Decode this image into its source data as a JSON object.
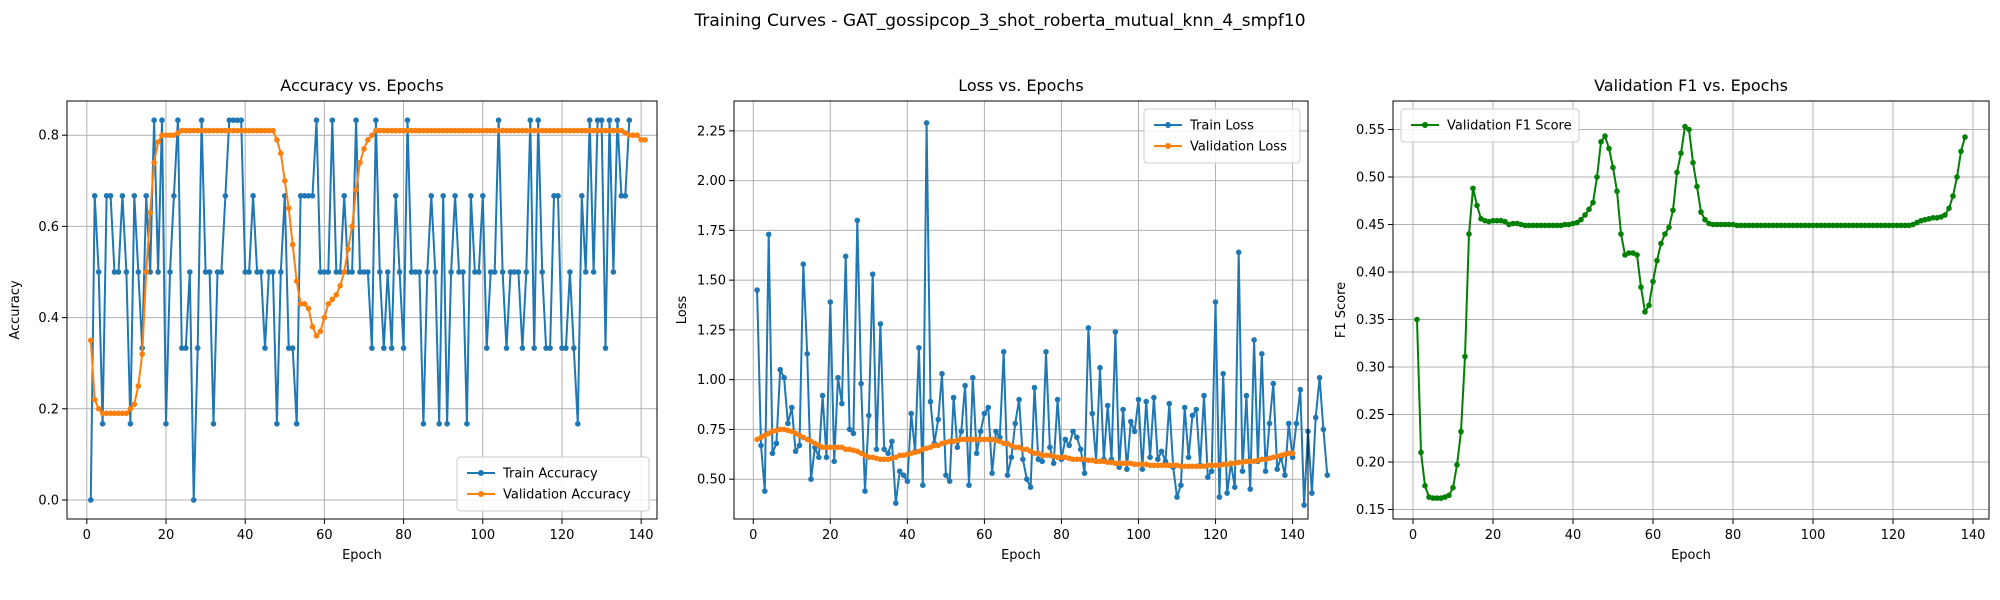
{
  "figure": {
    "suptitle": "Training Curves - GAT_gossipcop_3_shot_roberta_mutual_knn_4_smpf10"
  },
  "colors": {
    "train": "#1f77b4",
    "validation": "#ff7f0e",
    "f1": "#008000",
    "grid": "#b0b0b0"
  },
  "chart_data": [
    {
      "type": "line",
      "title": "Accuracy vs. Epochs",
      "xlabel": "Epoch",
      "ylabel": "Accuracy",
      "xlim": [
        -5,
        144
      ],
      "ylim": [
        -0.0417,
        0.875
      ],
      "xticks": [
        0,
        20,
        40,
        60,
        80,
        100,
        120,
        140
      ],
      "yticks": [
        0.0,
        0.2,
        0.4,
        0.6,
        0.8
      ],
      "ytick_labels": [
        "0.0",
        "0.2",
        "0.4",
        "0.6",
        "0.8"
      ],
      "grid": true,
      "legend": "lower-right",
      "series": [
        {
          "name": "Train Accuracy",
          "color": "#1f77b4",
          "x_start": 1,
          "values": [
            0.0,
            0.667,
            0.5,
            0.167,
            0.667,
            0.667,
            0.5,
            0.5,
            0.667,
            0.5,
            0.167,
            0.667,
            0.5,
            0.333,
            0.667,
            0.5,
            0.833,
            0.5,
            0.833,
            0.167,
            0.5,
            0.667,
            0.833,
            0.333,
            0.333,
            0.5,
            0.0,
            0.333,
            0.833,
            0.5,
            0.5,
            0.167,
            0.5,
            0.5,
            0.667,
            0.833,
            0.833,
            0.833,
            0.833,
            0.5,
            0.5,
            0.667,
            0.5,
            0.5,
            0.333,
            0.5,
            0.5,
            0.167,
            0.5,
            0.667,
            0.333,
            0.333,
            0.167,
            0.667,
            0.667,
            0.667,
            0.667,
            0.833,
            0.5,
            0.5,
            0.5,
            0.833,
            0.5,
            0.5,
            0.667,
            0.5,
            0.5,
            0.833,
            0.5,
            0.5,
            0.5,
            0.333,
            0.833,
            0.5,
            0.333,
            0.5,
            0.333,
            0.667,
            0.5,
            0.333,
            0.833,
            0.5,
            0.5,
            0.5,
            0.167,
            0.5,
            0.667,
            0.5,
            0.167,
            0.667,
            0.167,
            0.5,
            0.667,
            0.5,
            0.5,
            0.167,
            0.667,
            0.5,
            0.5,
            0.667,
            0.333,
            0.5,
            0.5,
            0.833,
            0.5,
            0.333,
            0.5,
            0.5,
            0.5,
            0.333,
            0.5,
            0.833,
            0.333,
            0.833,
            0.5,
            0.333,
            0.333,
            0.667,
            0.667,
            0.333,
            0.333,
            0.5,
            0.333,
            0.167,
            0.667,
            0.5,
            0.833,
            0.5,
            0.833,
            0.833,
            0.333,
            0.833,
            0.5,
            0.833,
            0.667,
            0.667,
            0.833
          ]
        },
        {
          "name": "Validation Accuracy",
          "color": "#ff7f0e",
          "x_start": 1,
          "values": [
            0.35,
            0.22,
            0.2,
            0.19,
            0.19,
            0.19,
            0.19,
            0.19,
            0.19,
            0.19,
            0.2,
            0.21,
            0.25,
            0.32,
            0.5,
            0.63,
            0.74,
            0.785,
            0.8,
            0.8,
            0.8,
            0.8,
            0.805,
            0.81,
            0.81,
            0.81,
            0.81,
            0.81,
            0.81,
            0.81,
            0.81,
            0.81,
            0.81,
            0.81,
            0.81,
            0.81,
            0.81,
            0.81,
            0.81,
            0.81,
            0.81,
            0.81,
            0.81,
            0.81,
            0.81,
            0.81,
            0.81,
            0.79,
            0.76,
            0.7,
            0.64,
            0.56,
            0.48,
            0.43,
            0.43,
            0.42,
            0.38,
            0.36,
            0.37,
            0.4,
            0.43,
            0.44,
            0.45,
            0.47,
            0.5,
            0.55,
            0.6,
            0.68,
            0.74,
            0.77,
            0.79,
            0.8,
            0.81,
            0.81,
            0.81,
            0.81,
            0.81,
            0.81,
            0.81,
            0.81,
            0.81,
            0.81,
            0.81,
            0.81,
            0.81,
            0.81,
            0.81,
            0.81,
            0.81,
            0.81,
            0.81,
            0.81,
            0.81,
            0.81,
            0.81,
            0.81,
            0.81,
            0.81,
            0.81,
            0.81,
            0.81,
            0.81,
            0.81,
            0.81,
            0.81,
            0.81,
            0.81,
            0.81,
            0.81,
            0.81,
            0.81,
            0.81,
            0.81,
            0.81,
            0.81,
            0.81,
            0.81,
            0.81,
            0.81,
            0.81,
            0.81,
            0.81,
            0.81,
            0.81,
            0.81,
            0.81,
            0.81,
            0.81,
            0.81,
            0.81,
            0.81,
            0.81,
            0.81,
            0.81,
            0.81,
            0.805,
            0.8,
            0.8,
            0.8,
            0.79,
            0.79
          ]
        }
      ]
    },
    {
      "type": "line",
      "title": "Loss vs. Epochs",
      "xlabel": "Epoch",
      "ylabel": "Loss",
      "xlim": [
        -5,
        144
      ],
      "ylim": [
        0.3,
        2.4
      ],
      "xticks": [
        0,
        20,
        40,
        60,
        80,
        100,
        120,
        140
      ],
      "yticks": [
        0.5,
        0.75,
        1.0,
        1.25,
        1.5,
        1.75,
        2.0,
        2.25
      ],
      "ytick_labels": [
        "0.50",
        "0.75",
        "1.00",
        "1.25",
        "1.50",
        "1.75",
        "2.00",
        "2.25"
      ],
      "grid": true,
      "legend": "top-right",
      "series": [
        {
          "name": "Train Loss",
          "color": "#1f77b4",
          "x_start": 1,
          "values": [
            1.45,
            0.67,
            0.44,
            1.73,
            0.63,
            0.68,
            1.05,
            1.01,
            0.78,
            0.86,
            0.64,
            0.67,
            1.58,
            1.13,
            0.5,
            0.66,
            0.61,
            0.92,
            0.61,
            1.39,
            0.59,
            1.01,
            0.88,
            1.62,
            0.75,
            0.73,
            1.8,
            0.98,
            0.44,
            0.82,
            1.53,
            0.65,
            1.28,
            0.65,
            0.63,
            0.69,
            0.38,
            0.54,
            0.52,
            0.49,
            0.83,
            0.64,
            1.16,
            0.47,
            2.29,
            0.89,
            0.68,
            0.8,
            1.03,
            0.52,
            0.49,
            0.91,
            0.66,
            0.74,
            0.97,
            0.47,
            1.01,
            0.63,
            0.74,
            0.83,
            0.86,
            0.53,
            0.74,
            0.71,
            1.14,
            0.52,
            0.61,
            0.78,
            0.9,
            0.6,
            0.5,
            0.46,
            0.96,
            0.6,
            0.59,
            1.14,
            0.66,
            0.58,
            0.9,
            0.6,
            0.7,
            0.67,
            0.74,
            0.71,
            0.65,
            0.53,
            1.26,
            0.83,
            0.59,
            1.06,
            0.6,
            0.87,
            0.6,
            1.24,
            0.56,
            0.85,
            0.55,
            0.79,
            0.74,
            0.9,
            0.55,
            0.89,
            0.61,
            0.91,
            0.6,
            0.64,
            0.59,
            0.88,
            0.56,
            0.41,
            0.47,
            0.86,
            0.61,
            0.82,
            0.85,
            0.57,
            0.92,
            0.51,
            0.54,
            1.39,
            0.41,
            1.03,
            0.43,
            0.58,
            0.46,
            1.64,
            0.54,
            0.92,
            0.45,
            1.2,
            0.59,
            1.13,
            0.54,
            0.78,
            0.98,
            0.55,
            0.61,
            0.52,
            0.78,
            0.61,
            0.78,
            0.95,
            0.37,
            0.74,
            0.43,
            0.81,
            1.01,
            0.75,
            0.52
          ]
        },
        {
          "name": "Validation Loss",
          "color": "#ff7f0e",
          "x_start": 1,
          "values": [
            0.7,
            0.71,
            0.72,
            0.73,
            0.74,
            0.745,
            0.75,
            0.75,
            0.745,
            0.74,
            0.73,
            0.72,
            0.71,
            0.7,
            0.69,
            0.68,
            0.67,
            0.66,
            0.66,
            0.66,
            0.66,
            0.66,
            0.66,
            0.65,
            0.65,
            0.645,
            0.64,
            0.63,
            0.62,
            0.61,
            0.61,
            0.605,
            0.6,
            0.6,
            0.6,
            0.605,
            0.61,
            0.62,
            0.62,
            0.625,
            0.63,
            0.635,
            0.64,
            0.65,
            0.655,
            0.66,
            0.67,
            0.67,
            0.68,
            0.685,
            0.69,
            0.69,
            0.695,
            0.7,
            0.7,
            0.7,
            0.7,
            0.7,
            0.7,
            0.7,
            0.7,
            0.7,
            0.695,
            0.69,
            0.68,
            0.68,
            0.67,
            0.66,
            0.66,
            0.65,
            0.65,
            0.64,
            0.63,
            0.63,
            0.62,
            0.62,
            0.62,
            0.615,
            0.61,
            0.61,
            0.61,
            0.605,
            0.6,
            0.6,
            0.6,
            0.6,
            0.595,
            0.595,
            0.59,
            0.59,
            0.59,
            0.585,
            0.585,
            0.58,
            0.58,
            0.58,
            0.58,
            0.58,
            0.575,
            0.575,
            0.575,
            0.575,
            0.57,
            0.57,
            0.57,
            0.57,
            0.57,
            0.57,
            0.57,
            0.57,
            0.565,
            0.565,
            0.565,
            0.565,
            0.565,
            0.565,
            0.565,
            0.57,
            0.57,
            0.57,
            0.57,
            0.575,
            0.575,
            0.58,
            0.58,
            0.585,
            0.585,
            0.59,
            0.59,
            0.59,
            0.595,
            0.6,
            0.6,
            0.605,
            0.61,
            0.615,
            0.62,
            0.625,
            0.63,
            0.63
          ]
        }
      ]
    },
    {
      "type": "line",
      "title": "Validation F1 vs. Epochs",
      "xlabel": "Epoch",
      "ylabel": "F1 Score",
      "xlim": [
        -5,
        144
      ],
      "ylim": [
        0.14,
        0.58
      ],
      "xticks": [
        0,
        20,
        40,
        60,
        80,
        100,
        120,
        140
      ],
      "yticks": [
        0.15,
        0.2,
        0.25,
        0.3,
        0.35,
        0.4,
        0.45,
        0.5,
        0.55
      ],
      "ytick_labels": [
        "0.15",
        "0.20",
        "0.25",
        "0.30",
        "0.35",
        "0.40",
        "0.45",
        "0.50",
        "0.55"
      ],
      "grid": true,
      "legend": "top-left",
      "series": [
        {
          "name": "Validation F1 Score",
          "color": "#008000",
          "x_start": 1,
          "values": [
            0.35,
            0.21,
            0.175,
            0.163,
            0.162,
            0.162,
            0.162,
            0.163,
            0.165,
            0.173,
            0.197,
            0.232,
            0.311,
            0.44,
            0.488,
            0.47,
            0.456,
            0.454,
            0.453,
            0.454,
            0.454,
            0.454,
            0.453,
            0.45,
            0.451,
            0.451,
            0.45,
            0.449,
            0.449,
            0.449,
            0.449,
            0.449,
            0.449,
            0.449,
            0.449,
            0.449,
            0.449,
            0.45,
            0.45,
            0.451,
            0.452,
            0.455,
            0.46,
            0.466,
            0.473,
            0.5,
            0.537,
            0.543,
            0.53,
            0.51,
            0.485,
            0.44,
            0.418,
            0.42,
            0.42,
            0.418,
            0.384,
            0.358,
            0.365,
            0.39,
            0.412,
            0.43,
            0.44,
            0.447,
            0.465,
            0.505,
            0.525,
            0.553,
            0.55,
            0.515,
            0.49,
            0.463,
            0.455,
            0.451,
            0.45,
            0.45,
            0.45,
            0.45,
            0.45,
            0.45,
            0.449,
            0.449,
            0.449,
            0.449,
            0.449,
            0.449,
            0.449,
            0.449,
            0.449,
            0.449,
            0.449,
            0.449,
            0.449,
            0.449,
            0.449,
            0.449,
            0.449,
            0.449,
            0.449,
            0.449,
            0.449,
            0.449,
            0.449,
            0.449,
            0.449,
            0.449,
            0.449,
            0.449,
            0.449,
            0.449,
            0.449,
            0.449,
            0.449,
            0.449,
            0.449,
            0.449,
            0.449,
            0.449,
            0.449,
            0.449,
            0.449,
            0.449,
            0.449,
            0.449,
            0.45,
            0.452,
            0.454,
            0.455,
            0.456,
            0.457,
            0.457,
            0.458,
            0.46,
            0.467,
            0.48,
            0.5,
            0.527,
            0.542
          ]
        }
      ]
    }
  ]
}
